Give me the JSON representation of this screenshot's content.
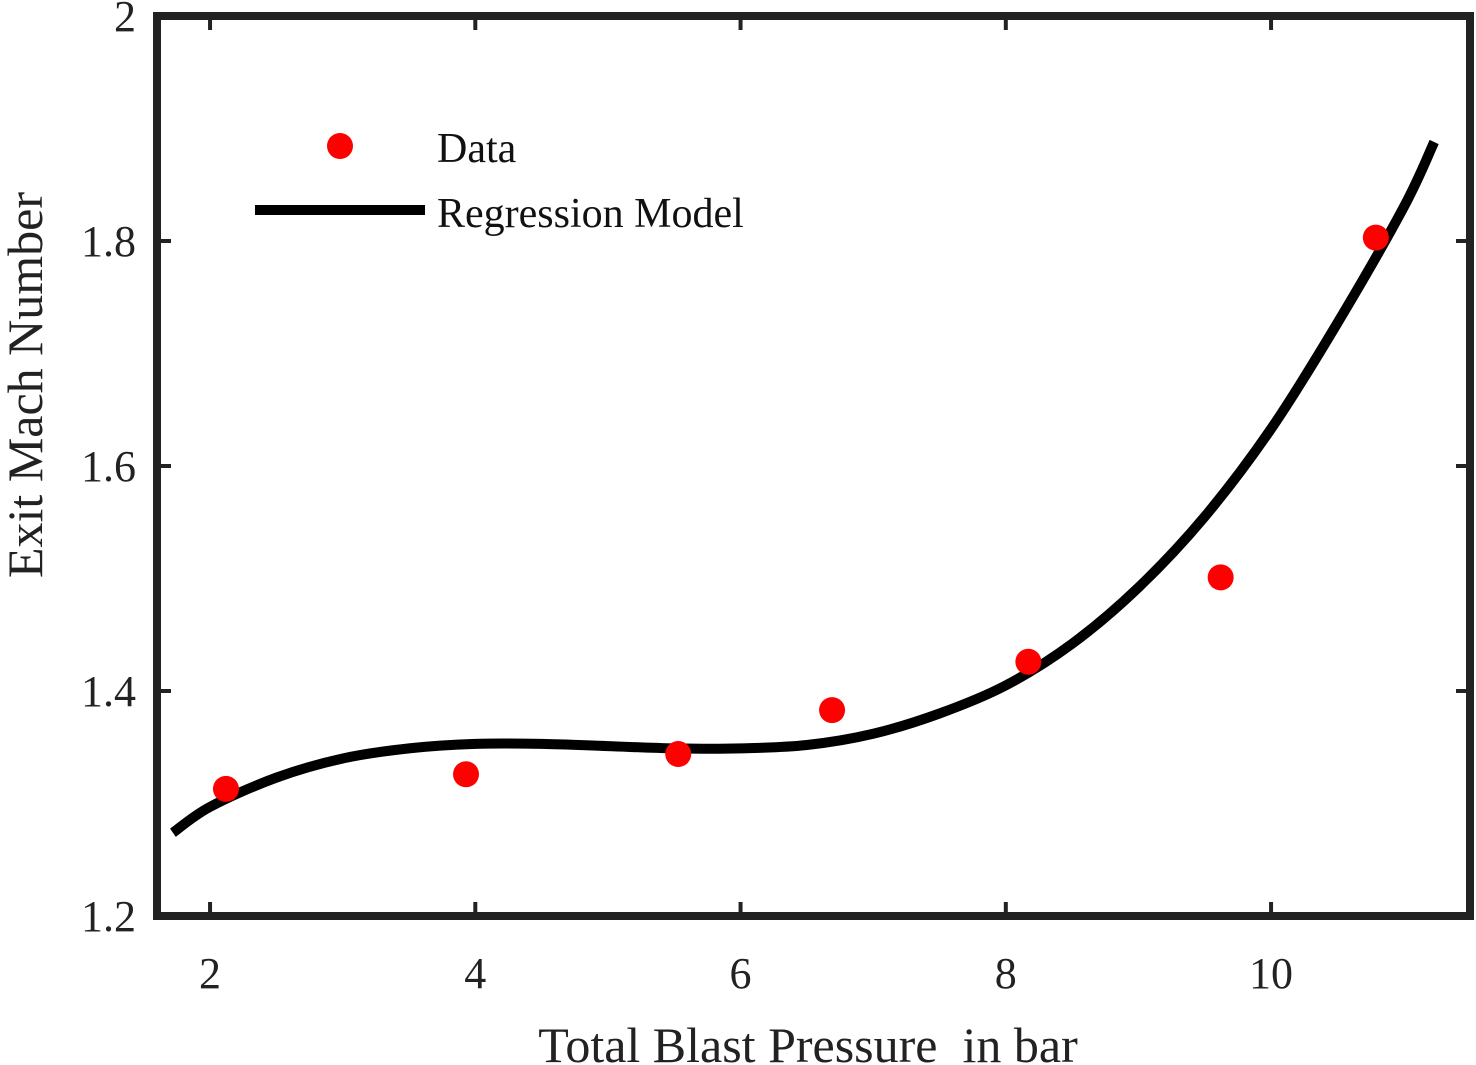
{
  "colors": {
    "data_marker": "#ff0000",
    "regression_line": "#000000",
    "axes": "#222222"
  },
  "chart_data": {
    "type": "scatter",
    "xlabel": "Total Blast Pressure  in bar",
    "ylabel": "Exit Mach Number",
    "xlim": [
      1.6,
      11.5
    ],
    "ylim": [
      1.2,
      2.0
    ],
    "xticks": [
      2,
      4,
      6,
      8,
      10
    ],
    "yticks": [
      1.2,
      1.4,
      1.6,
      1.8,
      2.0
    ],
    "xtick_labels": [
      "2",
      "4",
      "6",
      "8",
      "10"
    ],
    "ytick_labels": [
      "1.2",
      "1.4",
      "1.6",
      "1.8",
      "2"
    ],
    "grid": false,
    "legend": {
      "placement": "top-left",
      "entries": [
        "Data",
        "Regression Model"
      ]
    },
    "series": [
      {
        "name": "Data",
        "kind": "scatter",
        "x": [
          2.12,
          3.93,
          5.53,
          6.69,
          8.17,
          9.62,
          10.79
        ],
        "y": [
          1.313,
          1.326,
          1.344,
          1.383,
          1.426,
          1.501,
          1.803
        ]
      },
      {
        "name": "Regression Model",
        "kind": "line",
        "x": [
          1.72,
          2.0,
          2.5,
          3.0,
          3.5,
          4.0,
          4.5,
          5.0,
          5.5,
          6.0,
          6.5,
          7.0,
          7.5,
          8.0,
          8.5,
          9.0,
          9.5,
          10.0,
          10.5,
          11.0,
          11.23
        ],
        "y": [
          1.274,
          1.297,
          1.323,
          1.34,
          1.349,
          1.353,
          1.353,
          1.351,
          1.349,
          1.349,
          1.352,
          1.362,
          1.38,
          1.405,
          1.442,
          1.492,
          1.555,
          1.633,
          1.727,
          1.83,
          1.888
        ]
      }
    ]
  }
}
